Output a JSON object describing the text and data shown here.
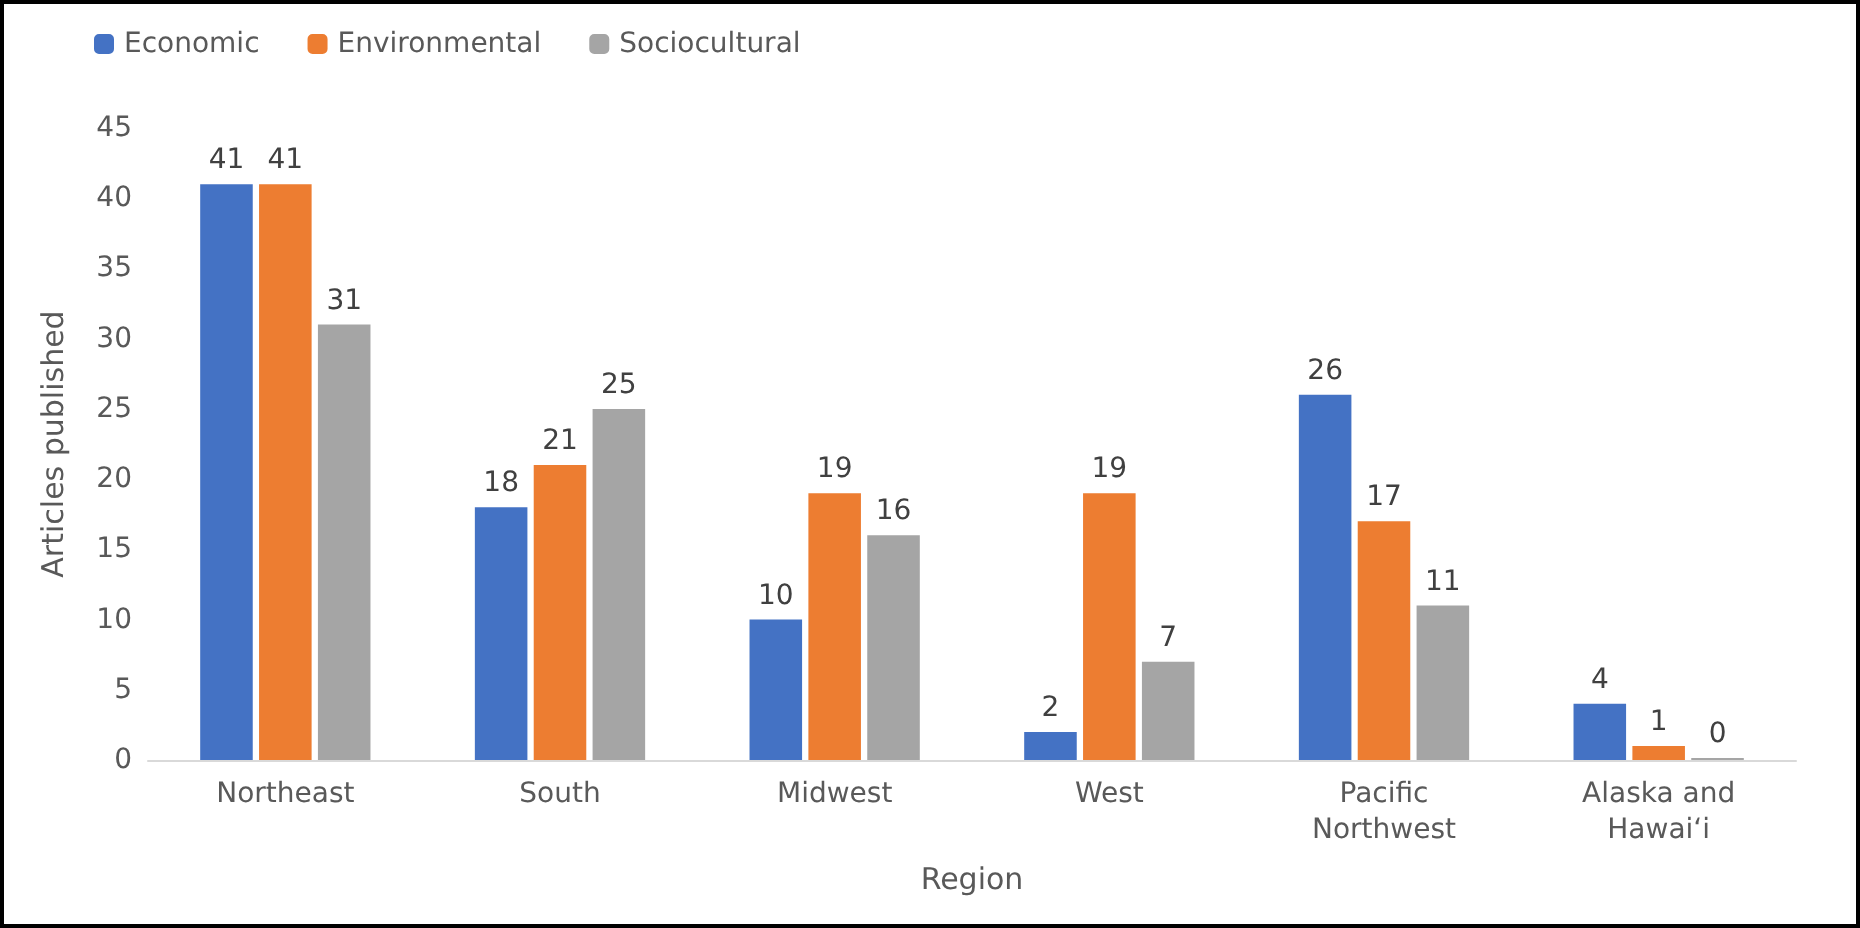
{
  "chart_data": {
    "type": "bar",
    "xlabel": "Region",
    "ylabel": "Articles published",
    "categories": [
      "Northeast",
      "South",
      "Midwest",
      "West",
      "Pacific\nNorthwest",
      "Alaska and\nHawaiʻi"
    ],
    "series": [
      {
        "name": "Economic",
        "color": "#4472c4",
        "values": [
          41,
          18,
          10,
          2,
          26,
          4
        ]
      },
      {
        "name": "Environmental",
        "color": "#ed7d31",
        "values": [
          41,
          21,
          19,
          19,
          17,
          1
        ]
      },
      {
        "name": "Sociocultural",
        "color": "#a5a5a5",
        "values": [
          31,
          25,
          16,
          7,
          11,
          0
        ]
      }
    ],
    "ylim": [
      0,
      45
    ],
    "yticks": [
      0,
      5,
      10,
      15,
      20,
      25,
      30,
      35,
      40,
      45
    ],
    "grid": false,
    "legend": "top left",
    "data_labels": true
  }
}
